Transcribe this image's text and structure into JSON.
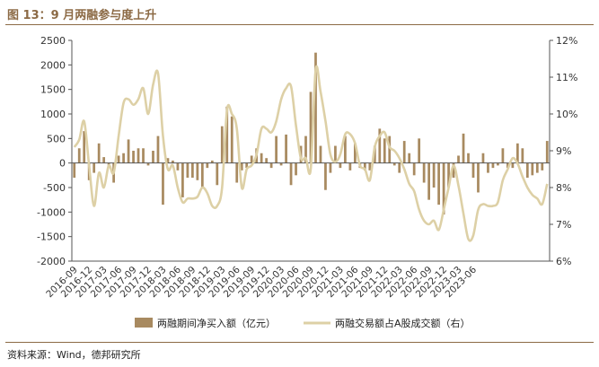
{
  "header": {
    "figure_title": "图 13：9 月两融参与度上升"
  },
  "footer": {
    "source": "资料来源：Wind，德邦研究所"
  },
  "colors": {
    "bar": "#a88a60",
    "line": "#ddd0a6",
    "title": "#8c6a45",
    "axis": "#555555"
  },
  "chart_data": {
    "type": "bar+line",
    "title": "图 13：9 月两融参与度上升",
    "left_axis": {
      "ylim": [
        -2000,
        2500
      ],
      "ticks": [
        -2000,
        -1500,
        -1000,
        -500,
        0,
        500,
        1000,
        1500,
        2000,
        2500
      ],
      "tick_labels": [
        "-2000",
        "-1500",
        "-1000",
        "-500",
        "0",
        "500",
        "1000",
        "1500",
        "2000",
        "2500"
      ]
    },
    "right_axis": {
      "ylim": [
        6,
        12
      ],
      "ticks": [
        6,
        7,
        8,
        9,
        10,
        11,
        12
      ],
      "tick_labels": [
        "6%",
        "7%",
        "8%",
        "9%",
        "10%",
        "11%",
        "12%"
      ]
    },
    "x_tick_labels": [
      "2016-09",
      "2016-12",
      "2017-03",
      "2017-06",
      "2017-09",
      "2017-12",
      "2018-03",
      "2018-06",
      "2018-09",
      "2018-12",
      "2019-03",
      "2019-06",
      "2019-09",
      "2019-12",
      "2020-03",
      "2020-06",
      "2020-09",
      "2020-12",
      "2021-03",
      "2021-06",
      "2021-09",
      "2021-12",
      "2022-03",
      "2022-06",
      "2022-09",
      "2022-12",
      "2023-03",
      "2023-06"
    ],
    "x_start": "2016-09",
    "x_end": "2023-09",
    "legend": [
      "两融期间净买入额（亿元）",
      "两融交易额占A股成交额（右）"
    ],
    "grid": false,
    "series": [
      {
        "name": "两融期间净买入额（亿元）",
        "type": "bar",
        "axis": "left",
        "values": [
          -300,
          300,
          650,
          -350,
          -200,
          400,
          120,
          -100,
          -400,
          150,
          200,
          480,
          250,
          300,
          300,
          -50,
          250,
          550,
          -850,
          100,
          50,
          -150,
          -700,
          -300,
          -300,
          -350,
          -500,
          -100,
          50,
          -450,
          750,
          1150,
          950,
          -400,
          -150,
          -100,
          150,
          300,
          200,
          100,
          -100,
          550,
          -50,
          580,
          -450,
          -250,
          350,
          550,
          1450,
          2250,
          350,
          -550,
          -200,
          350,
          -100,
          550,
          -150,
          400,
          -100,
          -150,
          -150,
          350,
          700,
          500,
          550,
          -50,
          -200,
          450,
          200,
          -250,
          500,
          -400,
          -750,
          -500,
          -850,
          -1050,
          -500,
          -300,
          150,
          600,
          200,
          -300,
          -600,
          200,
          -200,
          -100,
          -50,
          300,
          -100,
          -100,
          400,
          300,
          -300,
          -250,
          -200,
          -150,
          450
        ]
      },
      {
        "name": "两融交易额占A股成交额（右）",
        "type": "line",
        "axis": "right",
        "values": [
          9.1,
          9.3,
          9.8,
          8.6,
          7.5,
          8.4,
          8.0,
          8.6,
          8.4,
          9.4,
          10.3,
          10.4,
          10.25,
          10.4,
          10.7,
          10.0,
          10.8,
          11.1,
          9.4,
          8.5,
          8.6,
          8.0,
          7.6,
          7.7,
          7.7,
          7.75,
          8.0,
          7.85,
          7.5,
          7.5,
          8.0,
          10.1,
          10.0,
          9.6,
          8.0,
          8.5,
          8.6,
          8.9,
          9.6,
          9.6,
          9.5,
          9.8,
          10.4,
          10.7,
          10.75,
          9.7,
          8.8,
          8.8,
          8.5,
          11.2,
          10.6,
          9.8,
          8.9,
          8.7,
          8.9,
          9.45,
          9.45,
          9.2,
          8.6,
          8.5,
          8.2,
          9.1,
          9.4,
          9.5,
          9.1,
          9.0,
          8.8,
          8.5,
          8.1,
          7.9,
          7.4,
          7.1,
          7.0,
          7.1,
          6.85,
          7.4,
          8.0,
          8.6,
          8.05,
          7.3,
          6.6,
          6.7,
          7.4,
          7.55,
          7.5,
          7.5,
          7.6,
          8.2,
          8.5,
          8.8,
          8.65,
          8.3,
          8.0,
          7.8,
          7.7,
          7.55,
          8.1
        ]
      }
    ]
  }
}
